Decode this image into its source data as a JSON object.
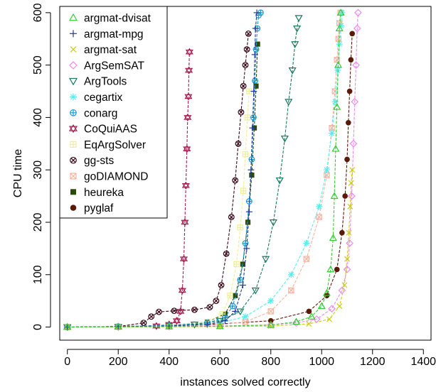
{
  "chart_data": {
    "type": "scatter",
    "title": "",
    "xlabel": "instances solved correctly",
    "ylabel": "CPU time",
    "xlim": [
      -30,
      1430
    ],
    "ylim": [
      -25,
      612
    ],
    "xticks": [
      0,
      200,
      400,
      600,
      800,
      1000,
      1200,
      1400
    ],
    "yticks": [
      0,
      100,
      200,
      300,
      400,
      500,
      600
    ],
    "legend_position": "top-left",
    "series": [
      {
        "name": "argmat-dvisat",
        "color": "#33cc33",
        "marker": "triangle-up",
        "x": [
          0,
          200,
          400,
          600,
          800,
          900,
          960,
          1000,
          1020,
          1035,
          1045,
          1050,
          1055,
          1060,
          1065,
          1070,
          1075
        ],
        "y": [
          0,
          0.5,
          1,
          1.5,
          4,
          10,
          20,
          40,
          65,
          110,
          170,
          250,
          340,
          420,
          500,
          570,
          600
        ]
      },
      {
        "name": "argmat-mpg",
        "color": "#1f3c99",
        "marker": "plus",
        "x": [
          0,
          200,
          400,
          550,
          620,
          660,
          690,
          705,
          715,
          722,
          728,
          733,
          737,
          740,
          745
        ],
        "y": [
          0,
          1,
          2,
          5,
          12,
          30,
          80,
          150,
          220,
          300,
          380,
          450,
          520,
          570,
          600
        ]
      },
      {
        "name": "argmat-sat",
        "color": "#c8cc1a",
        "marker": "cross",
        "x": [
          0,
          200,
          400,
          600,
          800,
          950,
          1030,
          1070,
          1090,
          1100,
          1107,
          1112,
          1116,
          1120
        ],
        "y": [
          0,
          0.3,
          0.5,
          1,
          2,
          6,
          15,
          40,
          80,
          130,
          180,
          230,
          275,
          300
        ]
      },
      {
        "name": "ArgSemSAT",
        "color": "#ee88ee",
        "marker": "diamond",
        "x": [
          0,
          200,
          400,
          600,
          800,
          900,
          980,
          1040,
          1080,
          1100,
          1110,
          1118,
          1125,
          1130,
          1135,
          1140,
          1143
        ],
        "y": [
          0,
          0.5,
          1,
          2,
          4,
          8,
          15,
          35,
          70,
          110,
          160,
          250,
          350,
          430,
          500,
          570,
          600
        ]
      },
      {
        "name": "ArgTools",
        "color": "#1a7a5a",
        "marker": "triangle-down",
        "x": [
          0,
          200,
          400,
          500,
          600,
          680,
          740,
          780,
          810,
          835,
          855,
          870,
          885,
          895,
          903,
          910
        ],
        "y": [
          0,
          0.5,
          2,
          5,
          12,
          30,
          70,
          130,
          200,
          280,
          360,
          430,
          490,
          540,
          570,
          590
        ]
      },
      {
        "name": "cegartix",
        "color": "#55eeee",
        "marker": "asterisk",
        "x": [
          0,
          200,
          400,
          600,
          700,
          800,
          880,
          940,
          990,
          1020,
          1040,
          1053,
          1063,
          1070,
          1076,
          1080
        ],
        "y": [
          0,
          0.5,
          2,
          8,
          20,
          50,
          100,
          160,
          230,
          300,
          370,
          430,
          490,
          540,
          575,
          600
        ]
      },
      {
        "name": "conarg",
        "color": "#1a9ad6",
        "marker": "circle-plus",
        "x": [
          0,
          200,
          400,
          550,
          620,
          650,
          680,
          700,
          715,
          725,
          732,
          738,
          742,
          747,
          752,
          760
        ],
        "y": [
          0,
          1,
          3,
          8,
          18,
          40,
          90,
          160,
          240,
          320,
          400,
          470,
          530,
          570,
          595,
          600
        ]
      },
      {
        "name": "CoQuiAAS",
        "color": "#a82050",
        "marker": "star",
        "x": [
          0,
          200,
          350,
          400,
          430,
          445,
          452,
          458,
          462,
          466,
          470,
          473,
          476,
          478,
          480
        ],
        "y": [
          0,
          0.5,
          2,
          5,
          12,
          30,
          70,
          130,
          200,
          270,
          340,
          400,
          440,
          490,
          525
        ]
      },
      {
        "name": "EqArgSolver",
        "color": "#eeee99",
        "marker": "square-plus",
        "x": [
          0,
          200,
          400,
          550,
          610,
          640,
          665,
          680,
          692,
          700,
          708,
          715
        ],
        "y": [
          0,
          1,
          3,
          10,
          25,
          60,
          120,
          190,
          260,
          330,
          400,
          450
        ]
      },
      {
        "name": "gg-sts",
        "color": "#3a0a1a",
        "marker": "circle-x",
        "x": [
          0,
          200,
          300,
          330,
          360,
          420,
          500,
          560,
          585,
          605,
          625,
          645,
          660,
          672,
          683,
          692,
          700,
          706,
          712
        ],
        "y": [
          0,
          1,
          8,
          20,
          29,
          31,
          33,
          38,
          50,
          80,
          140,
          210,
          280,
          350,
          410,
          460,
          500,
          530,
          560
        ]
      },
      {
        "name": "goDIAMOND",
        "color": "#f5b3a0",
        "marker": "square-x",
        "x": [
          0,
          200,
          400,
          600,
          700,
          800,
          880,
          940,
          990,
          1020,
          1040,
          1052,
          1060,
          1066,
          1070,
          1074
        ],
        "y": [
          0,
          0.5,
          1,
          4,
          10,
          30,
          70,
          130,
          210,
          290,
          380,
          450,
          510,
          550,
          580,
          600
        ]
      },
      {
        "name": "heureka",
        "color": "#2a4a0a",
        "marker": "filled-square",
        "x": [
          0,
          200,
          400,
          550,
          620,
          660,
          690,
          710,
          725,
          735,
          742,
          748
        ],
        "y": [
          0,
          1,
          3,
          10,
          25,
          60,
          120,
          200,
          290,
          380,
          460,
          540
        ]
      },
      {
        "name": "pyglaf",
        "color": "#5a1a0a",
        "marker": "filled-circle",
        "x": [
          0,
          200,
          400,
          600,
          800,
          950,
          1020,
          1060,
          1080,
          1092,
          1100,
          1105,
          1110,
          1115,
          1120
        ],
        "y": [
          0,
          1,
          3,
          6,
          12,
          30,
          60,
          110,
          180,
          250,
          320,
          390,
          450,
          510,
          560
        ]
      }
    ]
  }
}
